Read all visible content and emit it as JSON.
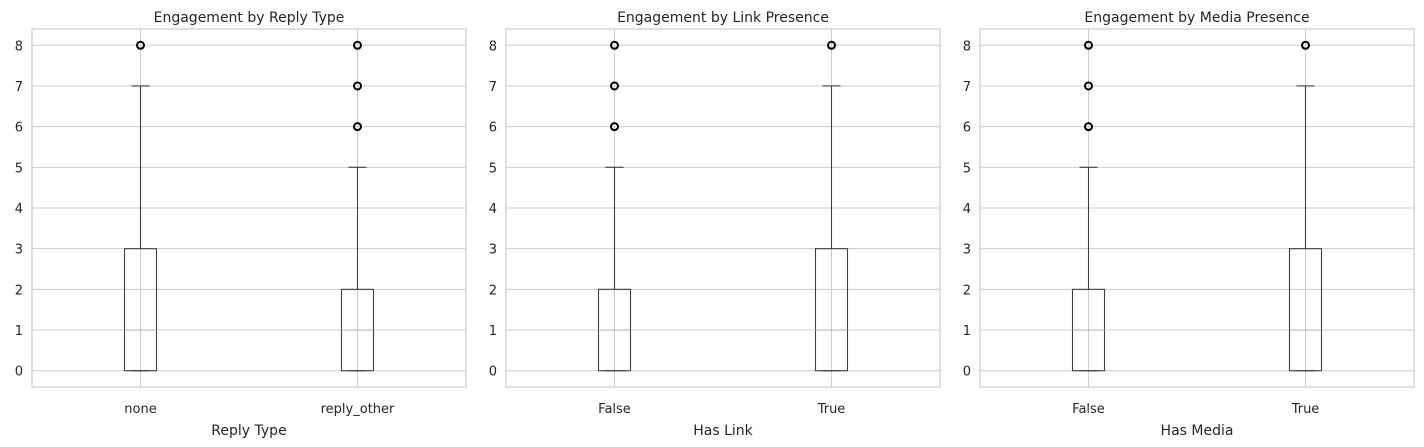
{
  "chart_data": [
    {
      "type": "box",
      "title": "Engagement by Reply Type",
      "xlabel": "Reply Type",
      "ylabel": "",
      "ylim": [
        -0.4,
        8.4
      ],
      "yticks": [
        0,
        1,
        2,
        3,
        4,
        5,
        6,
        7,
        8
      ],
      "grid": true,
      "categories": [
        "none",
        "reply_other"
      ],
      "boxes": [
        {
          "category": "none",
          "whisker_low": 0,
          "q1": 0,
          "median": 1,
          "q3": 3,
          "whisker_high": 7,
          "fliers": [
            8
          ]
        },
        {
          "category": "reply_other",
          "whisker_low": 0,
          "q1": 0,
          "median": 1,
          "q3": 2,
          "whisker_high": 5,
          "fliers": [
            6,
            7,
            8
          ]
        }
      ]
    },
    {
      "type": "box",
      "title": "Engagement by Link Presence",
      "xlabel": "Has Link",
      "ylabel": "",
      "ylim": [
        -0.4,
        8.4
      ],
      "yticks": [
        0,
        1,
        2,
        3,
        4,
        5,
        6,
        7,
        8
      ],
      "grid": true,
      "categories": [
        "False",
        "True"
      ],
      "boxes": [
        {
          "category": "False",
          "whisker_low": 0,
          "q1": 0,
          "median": 1,
          "q3": 2,
          "whisker_high": 5,
          "fliers": [
            6,
            7,
            8
          ]
        },
        {
          "category": "True",
          "whisker_low": 0,
          "q1": 0,
          "median": 1,
          "q3": 3,
          "whisker_high": 7,
          "fliers": [
            8
          ]
        }
      ]
    },
    {
      "type": "box",
      "title": "Engagement by Media Presence",
      "xlabel": "Has Media",
      "ylabel": "",
      "ylim": [
        -0.4,
        8.4
      ],
      "yticks": [
        0,
        1,
        2,
        3,
        4,
        5,
        6,
        7,
        8
      ],
      "grid": true,
      "categories": [
        "False",
        "True"
      ],
      "boxes": [
        {
          "category": "False",
          "whisker_low": 0,
          "q1": 0,
          "median": 1,
          "q3": 2,
          "whisker_high": 5,
          "fliers": [
            6,
            7,
            8
          ]
        },
        {
          "category": "True",
          "whisker_low": 0,
          "q1": 0,
          "median": 1,
          "q3": 3,
          "whisker_high": 7,
          "fliers": [
            8
          ]
        }
      ]
    }
  ]
}
